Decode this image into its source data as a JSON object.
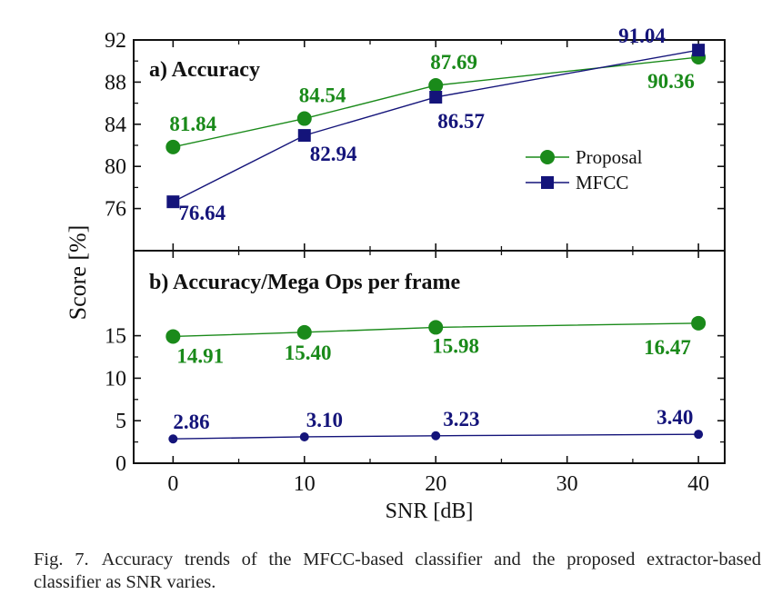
{
  "chart_data": [
    {
      "type": "line",
      "panel_title": "a) Accuracy",
      "x": [
        0,
        10,
        20,
        40
      ],
      "xlim": [
        -3,
        42
      ],
      "xticks": [
        0,
        10,
        20,
        30,
        40
      ],
      "ylim": [
        72,
        92
      ],
      "yticks": [
        76,
        80,
        84,
        88,
        92
      ],
      "grid": false,
      "legend_position": "right",
      "series": [
        {
          "name": "Proposal",
          "values": [
            81.84,
            84.54,
            87.69,
            90.36
          ],
          "labels": [
            "81.84",
            "84.54",
            "87.69",
            "90.36"
          ],
          "color": "#1a8a1a",
          "marker": "circle"
        },
        {
          "name": "MFCC",
          "values": [
            76.64,
            82.94,
            86.57,
            91.04
          ],
          "labels": [
            "76.64",
            "82.94",
            "86.57",
            "91.04"
          ],
          "color": "#14147a",
          "marker": "square"
        }
      ]
    },
    {
      "type": "line",
      "panel_title": "b) Accuracy/Mega Ops per frame",
      "x": [
        0,
        10,
        20,
        40
      ],
      "xlim": [
        -3,
        42
      ],
      "xticks": [
        0,
        10,
        20,
        30,
        40
      ],
      "ylim": [
        0,
        25
      ],
      "yticks": [
        0,
        5,
        10,
        15
      ],
      "grid": false,
      "series": [
        {
          "values": [
            14.91,
            15.4,
            15.98,
            16.47
          ],
          "labels": [
            "14.91",
            "15.40",
            "15.98",
            "16.47"
          ],
          "color": "#1a8a1a",
          "marker": "circle"
        },
        {
          "values": [
            2.86,
            3.1,
            3.23,
            3.4
          ],
          "labels": [
            "2.86",
            "3.10",
            "3.23",
            "3.40"
          ],
          "color": "#14147a",
          "marker": "circle-small"
        }
      ]
    }
  ],
  "axes": {
    "xlabel": "SNR [dB]",
    "ylabel": "Score [%]"
  },
  "caption": {
    "number": "Fig. 7.",
    "text": "Accuracy trends of the MFCC-based classifier and the proposed extractor-based classifier as SNR varies."
  }
}
